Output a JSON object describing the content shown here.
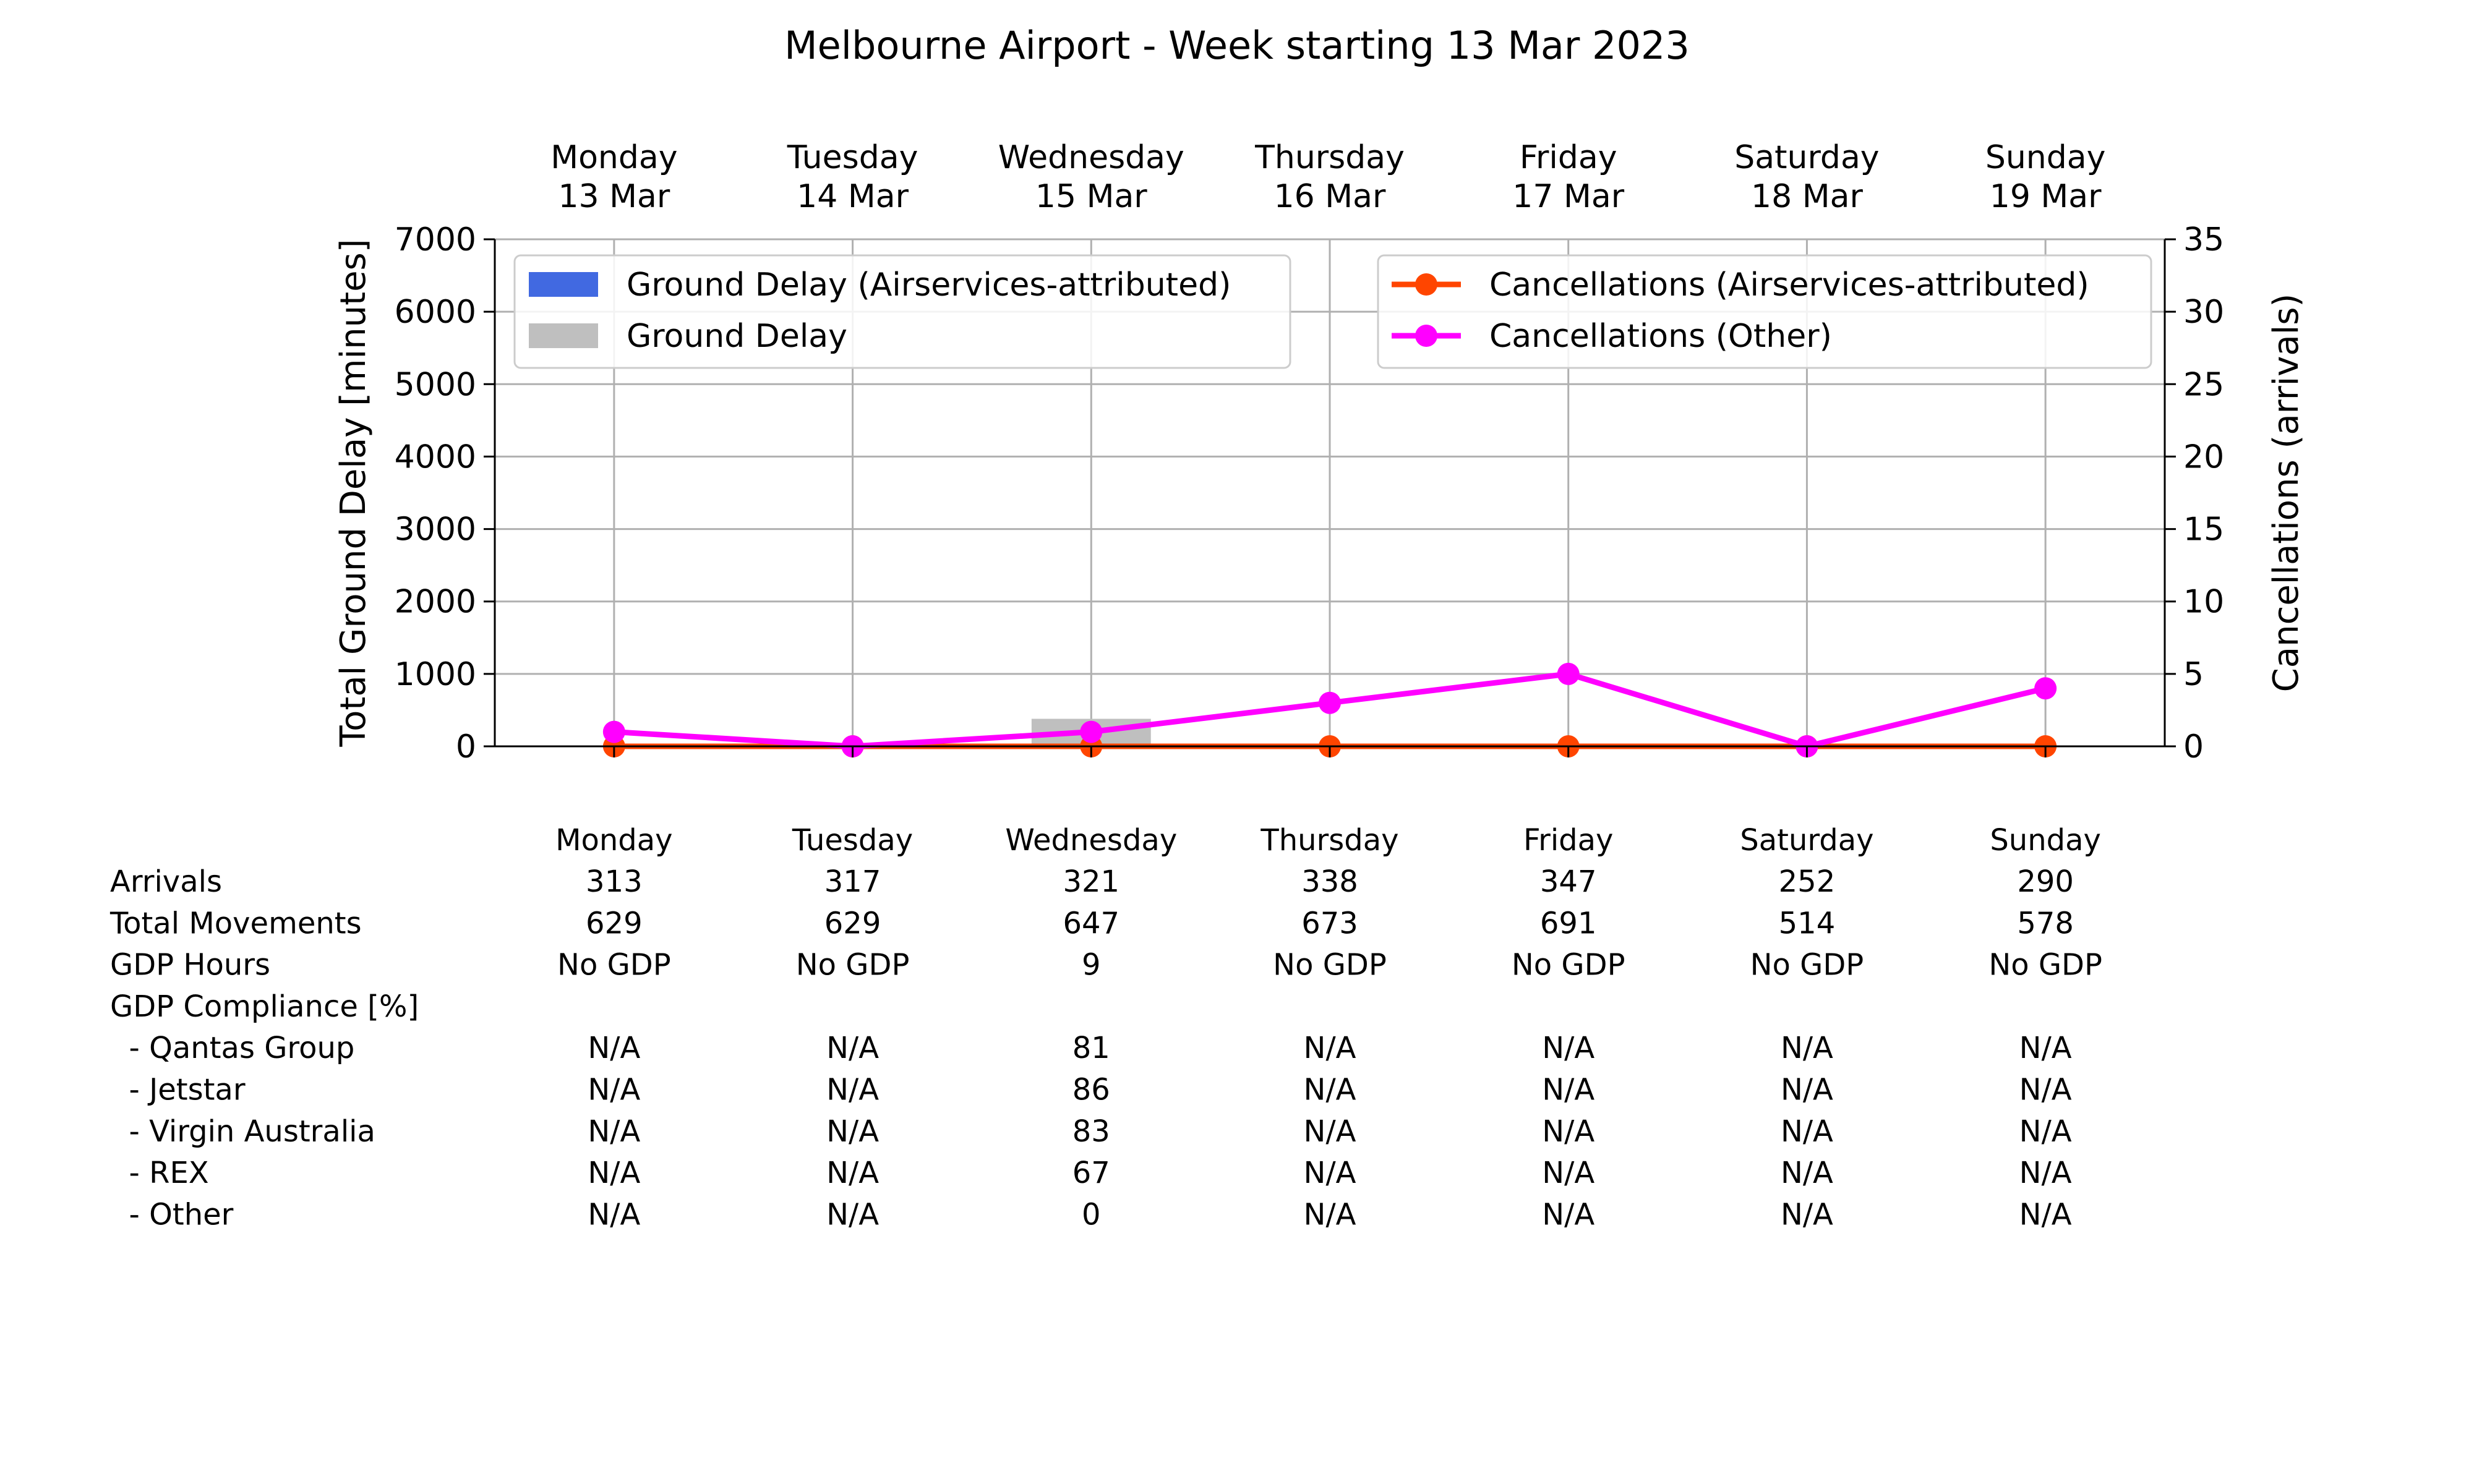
{
  "chart_data": {
    "type": "bar",
    "title": "Melbourne Airport - Week starting 13 Mar 2023",
    "categories": [
      "Monday",
      "Tuesday",
      "Wednesday",
      "Thursday",
      "Friday",
      "Saturday",
      "Sunday"
    ],
    "category_dates": [
      "13 Mar",
      "14 Mar",
      "15 Mar",
      "16 Mar",
      "17 Mar",
      "18 Mar",
      "19 Mar"
    ],
    "ylabel": "Total Ground Delay [minutes]",
    "ylim": [
      0,
      7000
    ],
    "yticks": [
      "0",
      "1000",
      "2000",
      "3000",
      "4000",
      "5000",
      "6000",
      "7000"
    ],
    "y2label": "Cancellations (arrivals)",
    "y2lim": [
      0,
      35
    ],
    "y2ticks": [
      "0",
      "5",
      "10",
      "15",
      "20",
      "25",
      "30",
      "35"
    ],
    "grid": true,
    "series": [
      {
        "name": "Ground Delay (Airservices-attributed)",
        "kind": "bar",
        "axis": "left",
        "color": "#4169e1",
        "values": [
          0,
          0,
          0,
          0,
          0,
          0,
          0
        ]
      },
      {
        "name": "Ground Delay",
        "kind": "bar",
        "axis": "left",
        "color": "#bfbfbf",
        "values": [
          0,
          0,
          380,
          0,
          0,
          0,
          0
        ]
      },
      {
        "name": "Cancellations (Airservices-attributed)",
        "kind": "line",
        "axis": "right",
        "color": "#ff4500",
        "values": [
          0,
          0,
          0,
          0,
          0,
          0,
          0
        ]
      },
      {
        "name": "Cancellations (Other)",
        "kind": "line",
        "axis": "right",
        "color": "#ff00ff",
        "values": [
          1,
          0,
          1,
          3,
          5,
          0,
          4
        ]
      }
    ],
    "legends": {
      "bars": "top-left",
      "lines": "top-right"
    },
    "table": {
      "columns": [
        "Monday",
        "Tuesday",
        "Wednesday",
        "Thursday",
        "Friday",
        "Saturday",
        "Sunday"
      ],
      "rows": [
        {
          "label": "Arrivals",
          "values": [
            "313",
            "317",
            "321",
            "338",
            "347",
            "252",
            "290"
          ]
        },
        {
          "label": "Total Movements",
          "values": [
            "629",
            "629",
            "647",
            "673",
            "691",
            "514",
            "578"
          ]
        },
        {
          "label": "GDP Hours",
          "values": [
            "No GDP",
            "No GDP",
            "9",
            "No GDP",
            "No GDP",
            "No GDP",
            "No GDP"
          ]
        },
        {
          "label": "GDP Compliance [%]",
          "values": [
            "",
            "",
            "",
            "",
            "",
            "",
            ""
          ]
        },
        {
          "label": "  - Qantas Group",
          "values": [
            "N/A",
            "N/A",
            "81",
            "N/A",
            "N/A",
            "N/A",
            "N/A"
          ]
        },
        {
          "label": "  - Jetstar",
          "values": [
            "N/A",
            "N/A",
            "86",
            "N/A",
            "N/A",
            "N/A",
            "N/A"
          ]
        },
        {
          "label": "  - Virgin Australia",
          "values": [
            "N/A",
            "N/A",
            "83",
            "N/A",
            "N/A",
            "N/A",
            "N/A"
          ]
        },
        {
          "label": "  - REX",
          "values": [
            "N/A",
            "N/A",
            "67",
            "N/A",
            "N/A",
            "N/A",
            "N/A"
          ]
        },
        {
          "label": "  - Other",
          "values": [
            "N/A",
            "N/A",
            "0",
            "N/A",
            "N/A",
            "N/A",
            "N/A"
          ]
        }
      ]
    }
  }
}
